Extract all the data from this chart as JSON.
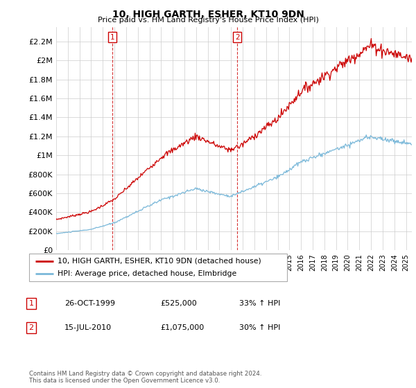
{
  "title": "10, HIGH GARTH, ESHER, KT10 9DN",
  "subtitle": "Price paid vs. HM Land Registry's House Price Index (HPI)",
  "ylabel_ticks": [
    "£0",
    "£200K",
    "£400K",
    "£600K",
    "£800K",
    "£1M",
    "£1.2M",
    "£1.4M",
    "£1.6M",
    "£1.8M",
    "£2M",
    "£2.2M"
  ],
  "ytick_values": [
    0,
    200000,
    400000,
    600000,
    800000,
    1000000,
    1200000,
    1400000,
    1600000,
    1800000,
    2000000,
    2200000
  ],
  "ylim": [
    0,
    2350000
  ],
  "sale1_date": 1999.82,
  "sale1_price": 525000,
  "sale2_date": 2010.54,
  "sale2_price": 1075000,
  "hpi_color": "#7ab8d9",
  "price_color": "#cc0000",
  "background_color": "#ffffff",
  "grid_color": "#cccccc",
  "legend_entries": [
    "10, HIGH GARTH, ESHER, KT10 9DN (detached house)",
    "HPI: Average price, detached house, Elmbridge"
  ],
  "table_rows": [
    [
      "1",
      "26-OCT-1999",
      "£525,000",
      "33% ↑ HPI"
    ],
    [
      "2",
      "15-JUL-2010",
      "£1,075,000",
      "30% ↑ HPI"
    ]
  ],
  "footnote": "Contains HM Land Registry data © Crown copyright and database right 2024.\nThis data is licensed under the Open Government Licence v3.0.",
  "xmin": 1995.0,
  "xmax": 2025.5
}
